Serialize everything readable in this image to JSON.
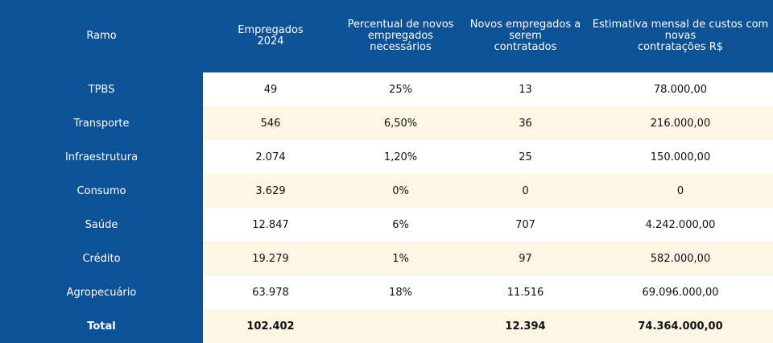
{
  "headers": [
    "Ramo",
    "Empregados\n2024",
    "Percentual de novos\nempregados\nnecessários",
    "Novos empregados a\nserem\ncontratados",
    "Estimativa mensal de custos com\nnovas\ncontratações R$"
  ],
  "rows": [
    [
      "TPBS",
      "49",
      "25%",
      "13",
      "78.000,00"
    ],
    [
      "Transporte",
      "546",
      "6,50%",
      "36",
      "216.000,00"
    ],
    [
      "Infraestrutura",
      "2.074",
      "1,20%",
      "25",
      "150.000,00"
    ],
    [
      "Consumo",
      "3.629",
      "0%",
      "0",
      "0"
    ],
    [
      "Saúde",
      "12.847",
      "6%",
      "707",
      "4.242.000,00"
    ],
    [
      "Crédito",
      "19.279",
      "1%",
      "97",
      "582.000,00"
    ],
    [
      "Agropecuário",
      "63.978",
      "18%",
      "11.516",
      "69.096.000,00"
    ],
    [
      "Total",
      "102.402",
      "",
      "12.394",
      "74.364.000,00"
    ]
  ],
  "colors": {
    "header_bg": "#0d5197",
    "row_alt": "#fdf6e4"
  }
}
